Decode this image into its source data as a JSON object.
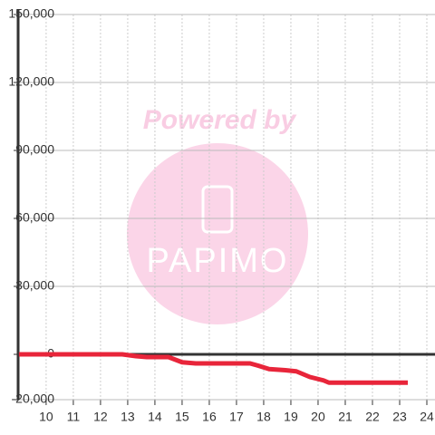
{
  "chart_data": {
    "type": "line",
    "watermark": {
      "text": "Powered by",
      "logo": "PAPIMO"
    },
    "x": [
      9,
      12.8,
      13.3,
      13.7,
      14.5,
      15,
      15.5,
      17.5,
      17.8,
      18.2,
      18.8,
      19.2,
      19.7,
      20.2,
      20.4,
      23.3
    ],
    "series": [
      {
        "color": "#e8253a",
        "values": [
          0,
          0,
          -800,
          -1200,
          -1200,
          -3500,
          -4000,
          -4000,
          -5000,
          -6500,
          -7000,
          -7500,
          -10000,
          -11500,
          -12500,
          -12500
        ]
      }
    ],
    "xlim": [
      8.97,
      24.3
    ],
    "xticks": [
      10,
      11,
      12,
      13,
      14,
      15,
      16,
      17,
      18,
      19,
      20,
      21,
      22,
      23,
      24
    ],
    "ylim": [
      -20000,
      150000
    ],
    "yticks": [
      {
        "value": -20000,
        "label": "-20,000"
      },
      0,
      {
        "value": 30000,
        "label": "30,000"
      },
      {
        "value": 60000,
        "label": "60,000"
      },
      {
        "value": 90000,
        "label": "90,000"
      },
      {
        "value": 120000,
        "label": "120,000"
      },
      {
        "value": 150000,
        "label": "150,000"
      }
    ],
    "grid": true
  }
}
